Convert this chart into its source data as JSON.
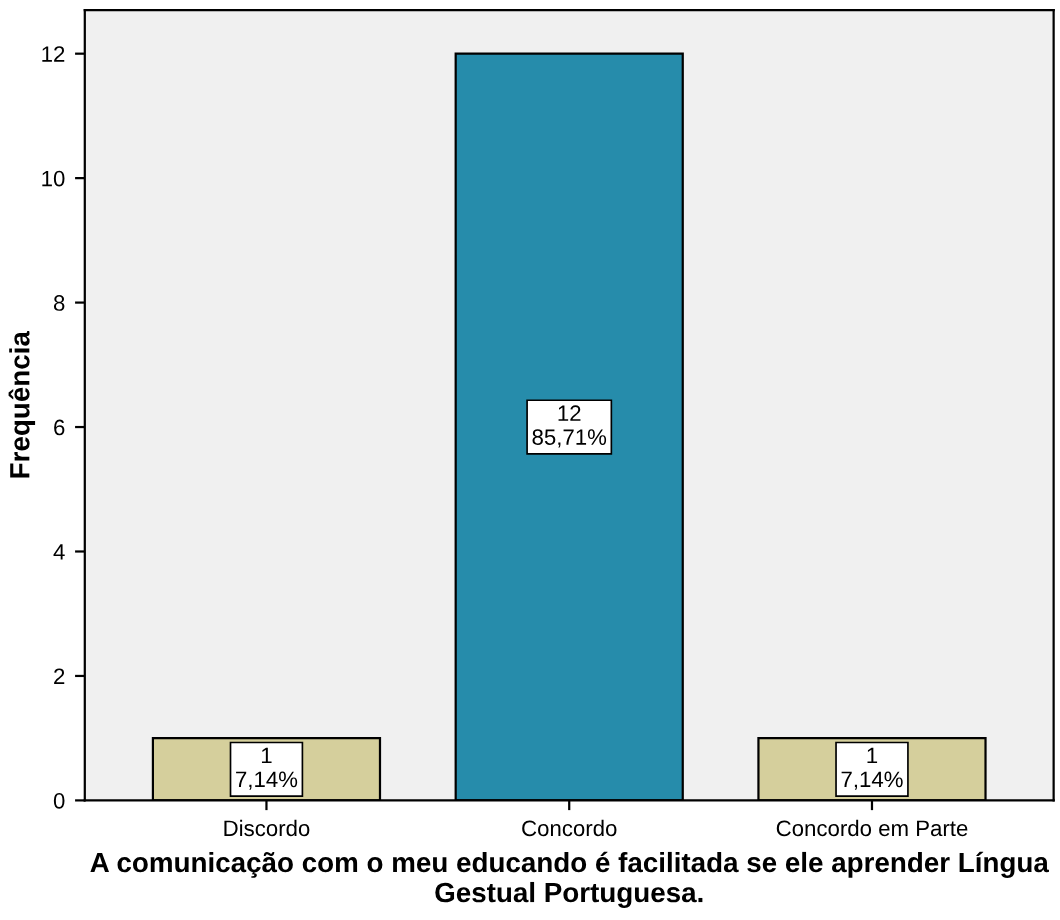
{
  "chart_data": {
    "type": "bar",
    "xlabel": "A comunicação com o meu educando é facilitada se ele aprender Língua\nGestual Portuguesa.",
    "ylabel": "Frequência",
    "categories": [
      "Discordo",
      "Concordo",
      "Concordo em Parte"
    ],
    "values": [
      1,
      12,
      1
    ],
    "colors": [
      "#d5cf9c",
      "#268cab",
      "#d5cf9c"
    ],
    "value_labels": [
      "1\n7,14%",
      "12\n85,71%",
      "1\n7,14%"
    ],
    "ylim": [
      0,
      12.7
    ],
    "yticks": [
      0,
      2,
      4,
      6,
      8,
      10,
      12
    ],
    "grid": false,
    "legend": false
  }
}
